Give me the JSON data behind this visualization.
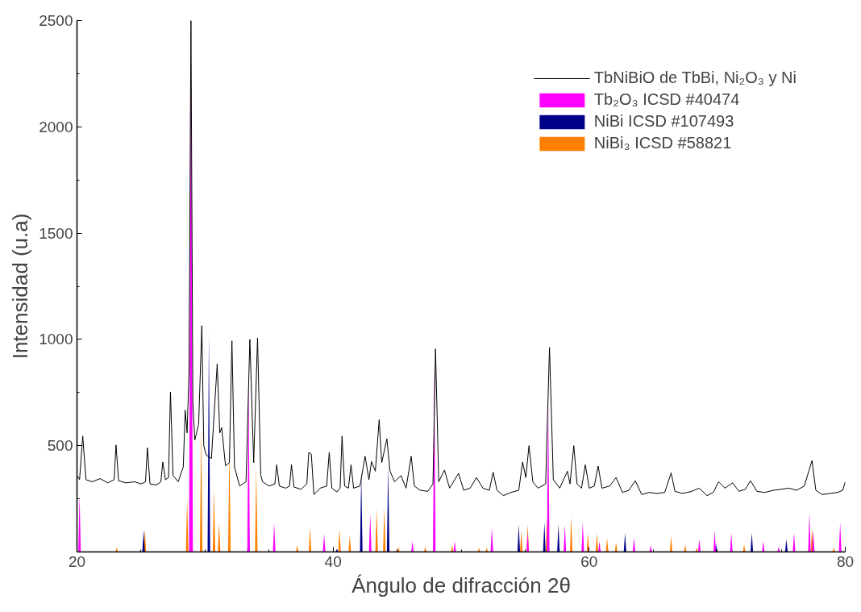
{
  "chart_data": {
    "type": "area",
    "xlabel": "Ángulo de difracción 2θ",
    "ylabel": "Intensidad (u.a)",
    "xlim": [
      20,
      80
    ],
    "ylim": [
      0,
      2500
    ],
    "xticks": [
      20,
      40,
      60,
      80
    ],
    "yticks": [
      500,
      1000,
      1500,
      2000,
      2500
    ],
    "grid": false,
    "legend": "top right",
    "series": [
      {
        "name": "TbNiBiO de TbBi, Ni₂O₃ y Ni",
        "type": "line",
        "color": "#000000",
        "x": [
          20.0,
          20.2,
          20.45,
          20.7,
          21.2,
          21.8,
          22.4,
          22.9,
          23.05,
          23.25,
          23.8,
          24.5,
          25.0,
          25.35,
          25.5,
          25.7,
          26.2,
          26.55,
          26.7,
          26.9,
          27.15,
          27.3,
          27.5,
          27.9,
          28.3,
          28.45,
          28.6,
          28.75,
          28.9,
          29.05,
          29.2,
          29.5,
          29.75,
          29.9,
          30.1,
          30.5,
          30.95,
          31.15,
          31.3,
          31.6,
          31.9,
          32.1,
          32.3,
          32.7,
          33.2,
          33.5,
          33.8,
          34.1,
          34.35,
          34.5,
          35.0,
          35.45,
          35.6,
          35.8,
          36.3,
          36.6,
          36.75,
          36.95,
          37.5,
          37.95,
          38.1,
          38.3,
          38.5,
          39.0,
          39.5,
          39.7,
          39.9,
          40.3,
          40.55,
          40.7,
          40.9,
          41.2,
          41.4,
          41.6,
          42.1,
          42.5,
          42.8,
          43.0,
          43.3,
          43.6,
          43.8,
          44.2,
          44.45,
          44.8,
          45.3,
          45.7,
          46.1,
          46.35,
          46.8,
          47.4,
          47.8,
          48.0,
          48.25,
          48.7,
          49.1,
          49.8,
          50.2,
          50.7,
          51.2,
          51.7,
          52.2,
          52.5,
          52.8,
          53.3,
          53.9,
          54.5,
          54.8,
          55.05,
          55.3,
          55.6,
          56.0,
          56.6,
          56.9,
          57.2,
          57.7,
          58.3,
          58.5,
          58.8,
          59.05,
          59.4,
          59.7,
          60.0,
          60.4,
          60.7,
          61.0,
          61.6,
          62.1,
          62.6,
          63.1,
          63.6,
          64.1,
          64.7,
          65.3,
          65.9,
          66.4,
          66.7,
          67.3,
          68.0,
          68.6,
          69.2,
          69.7,
          70.1,
          70.6,
          71.2,
          71.7,
          72.2,
          72.6,
          73.1,
          73.7,
          74.4,
          75.0,
          75.6,
          76.2,
          76.8,
          77.4,
          77.7,
          78.2,
          78.8,
          79.4,
          79.8,
          80.0
        ],
        "values": [
          360,
          340,
          545,
          340,
          330,
          345,
          325,
          340,
          503,
          335,
          325,
          330,
          320,
          330,
          490,
          320,
          315,
          330,
          423,
          340,
          350,
          753,
          360,
          330,
          400,
          667,
          560,
          850,
          2500,
          700,
          526,
          600,
          1065,
          500,
          455,
          440,
          885,
          560,
          585,
          405,
          420,
          993,
          400,
          310,
          330,
          1000,
          420,
          1007,
          360,
          330,
          310,
          320,
          410,
          310,
          300,
          310,
          410,
          305,
          295,
          320,
          468,
          460,
          270,
          300,
          310,
          468,
          300,
          282,
          300,
          545,
          310,
          300,
          410,
          300,
          310,
          450,
          340,
          425,
          380,
          622,
          420,
          532,
          380,
          330,
          359,
          300,
          450,
          310,
          290,
          285,
          320,
          955,
          330,
          385,
          300,
          370,
          290,
          300,
          350,
          300,
          290,
          375,
          290,
          265,
          280,
          290,
          423,
          350,
          500,
          330,
          300,
          320,
          962,
          340,
          300,
          380,
          320,
          500,
          320,
          300,
          410,
          300,
          310,
          404,
          300,
          310,
          350,
          280,
          290,
          335,
          270,
          280,
          275,
          280,
          372,
          285,
          275,
          285,
          300,
          265,
          280,
          330,
          300,
          325,
          285,
          295,
          335,
          285,
          280,
          290,
          295,
          300,
          290,
          310,
          430,
          290,
          270,
          275,
          280,
          290,
          330
        ]
      },
      {
        "name": "Tb₂O₃ ICSD #40474",
        "color": "#ff00ff",
        "x": [
          20.0,
          20.1,
          20.2,
          20.3,
          28.75,
          28.9,
          29.05,
          33.3,
          33.4,
          33.5,
          35.3,
          35.4,
          35.5,
          39.2,
          39.3,
          39.4,
          42.8,
          42.9,
          43.0,
          46.1,
          46.2,
          46.3,
          47.8,
          47.9,
          48.0,
          49.4,
          49.5,
          49.6,
          52.3,
          52.4,
          52.5,
          55.1,
          55.2,
          55.3,
          56.7,
          56.8,
          56.9,
          58.0,
          58.1,
          58.2,
          59.4,
          59.5,
          59.6,
          60.7,
          60.8,
          60.9,
          63.4,
          63.5,
          63.6,
          64.7,
          64.8,
          64.9,
          68.5,
          68.6,
          68.7,
          69.7,
          69.8,
          69.9,
          71.0,
          71.1,
          71.2,
          73.5,
          73.6,
          73.7,
          74.7,
          74.8,
          74.9,
          75.9,
          76.0,
          76.1,
          77.1,
          77.2,
          77.3,
          77.4,
          77.5,
          77.6,
          79.5,
          79.6,
          79.7,
          80.0
        ],
        "values": [
          0,
          0,
          269,
          0,
          0,
          2500,
          0,
          0,
          820,
          0,
          0,
          135,
          0,
          0,
          85,
          0,
          0,
          180,
          0,
          0,
          50,
          0,
          0,
          880,
          0,
          0,
          50,
          0,
          0,
          115,
          0,
          0,
          90,
          0,
          0,
          710,
          0,
          0,
          130,
          0,
          0,
          140,
          0,
          0,
          50,
          0,
          0,
          65,
          0,
          0,
          30,
          0,
          0,
          60,
          0,
          0,
          100,
          0,
          0,
          90,
          0,
          0,
          50,
          0,
          0,
          25,
          0,
          0,
          90,
          0,
          0,
          185,
          0,
          0,
          100,
          0,
          0,
          140,
          0,
          0
        ]
      },
      {
        "name": "NiBi ICSD #107493",
        "color": "#00008b",
        "x": [
          20.0,
          25.1,
          25.2,
          25.3,
          30.2,
          30.3,
          30.4,
          33.3,
          33.4,
          33.5,
          40.2,
          40.3,
          40.4,
          42.1,
          42.2,
          42.3,
          44.2,
          44.3,
          44.4,
          54.4,
          54.5,
          54.6,
          56.4,
          56.5,
          56.6,
          57.5,
          57.6,
          57.7,
          62.7,
          62.8,
          62.9,
          69.8,
          69.9,
          70.0,
          72.6,
          72.7,
          72.8,
          75.3,
          75.4,
          75.5,
          80.0
        ],
        "values": [
          0,
          0,
          103,
          0,
          0,
          1030,
          0,
          0,
          140,
          0,
          0,
          15,
          0,
          0,
          372,
          0,
          0,
          410,
          0,
          0,
          130,
          0,
          0,
          140,
          0,
          0,
          130,
          0,
          0,
          90,
          0,
          0,
          40,
          0,
          0,
          90,
          0,
          0,
          60,
          0,
          0
        ]
      },
      {
        "name": "NiBi₃ ICSD #58821",
        "color": "#ff8000",
        "x": [
          20.0,
          23.0,
          23.1,
          23.2,
          25.2,
          25.3,
          25.4,
          28.5,
          28.6,
          28.7,
          29.6,
          29.7,
          29.8,
          30.6,
          30.7,
          30.8,
          31.0,
          31.1,
          31.2,
          31.8,
          31.9,
          32.0,
          33.9,
          34.0,
          34.1,
          37.1,
          37.2,
          37.3,
          38.1,
          38.2,
          38.3,
          40.4,
          40.5,
          40.6,
          41.2,
          41.3,
          41.4,
          43.3,
          43.4,
          43.5,
          43.9,
          44.0,
          44.1,
          45.0,
          45.1,
          45.2,
          47.1,
          47.2,
          47.3,
          49.2,
          49.3,
          49.4,
          51.3,
          51.4,
          51.5,
          51.9,
          52.0,
          52.1,
          54.6,
          54.7,
          54.8,
          55.1,
          55.2,
          55.3,
          56.6,
          56.7,
          56.8,
          58.5,
          58.6,
          58.7,
          59.8,
          59.9,
          60.0,
          60.5,
          60.6,
          60.7,
          61.3,
          61.4,
          61.5,
          62.0,
          62.1,
          62.2,
          66.3,
          66.4,
          66.5,
          67.4,
          67.5,
          67.6,
          68.3,
          68.4,
          68.5,
          72.0,
          72.1,
          72.2,
          77.3,
          77.4,
          77.5,
          79.0,
          79.1,
          79.2,
          80.0
        ],
        "values": [
          0,
          0,
          20,
          0,
          0,
          105,
          0,
          0,
          257,
          0,
          0,
          590,
          0,
          0,
          300,
          0,
          0,
          140,
          0,
          0,
          507,
          0,
          0,
          397,
          0,
          0,
          30,
          0,
          0,
          115,
          0,
          0,
          110,
          0,
          0,
          77,
          0,
          0,
          205,
          0,
          0,
          210,
          0,
          0,
          25,
          0,
          0,
          25,
          0,
          0,
          30,
          0,
          0,
          20,
          0,
          0,
          20,
          0,
          0,
          100,
          0,
          0,
          130,
          0,
          0,
          160,
          0,
          0,
          167,
          0,
          0,
          90,
          0,
          0,
          90,
          0,
          0,
          65,
          0,
          0,
          45,
          0,
          0,
          75,
          0,
          0,
          35,
          0,
          0,
          20,
          0,
          0,
          35,
          0,
          0,
          110,
          0,
          0,
          20,
          0,
          0
        ]
      }
    ]
  }
}
